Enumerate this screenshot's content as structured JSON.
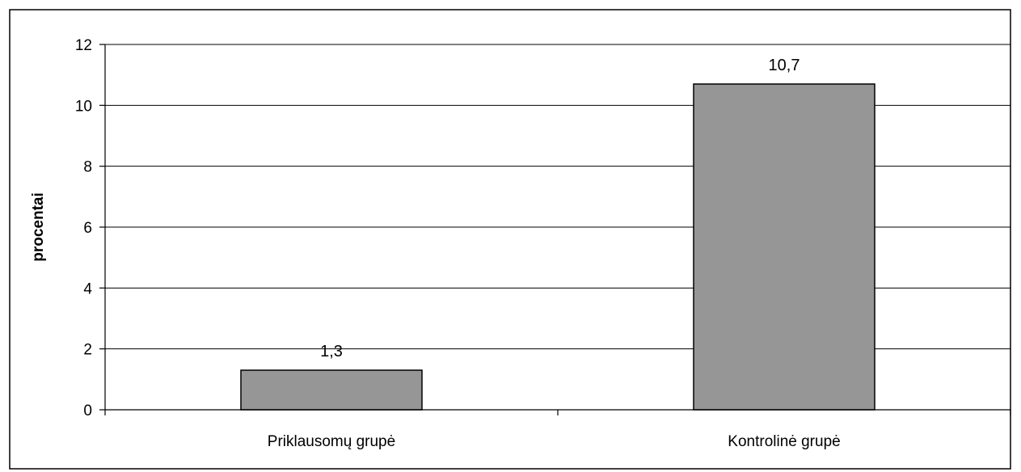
{
  "chart_data": {
    "type": "bar",
    "categories": [
      "Priklausomų grupė",
      "Kontrolinė grupė"
    ],
    "values": [
      1.3,
      10.7
    ],
    "value_labels": [
      "1,3",
      "10,7"
    ],
    "title": "",
    "xlabel": "",
    "ylabel": "procentai",
    "ylim": [
      0,
      12
    ],
    "yticks": [
      0,
      2,
      4,
      6,
      8,
      10,
      12
    ],
    "ytick_labels": [
      "0",
      "2",
      "4",
      "6",
      "8",
      "10",
      "12"
    ],
    "grid": true,
    "legend": "none",
    "colors": {
      "bar_fill": "#969696",
      "bar_stroke": "#000000",
      "grid": "#000000",
      "frame": "#000000"
    }
  }
}
